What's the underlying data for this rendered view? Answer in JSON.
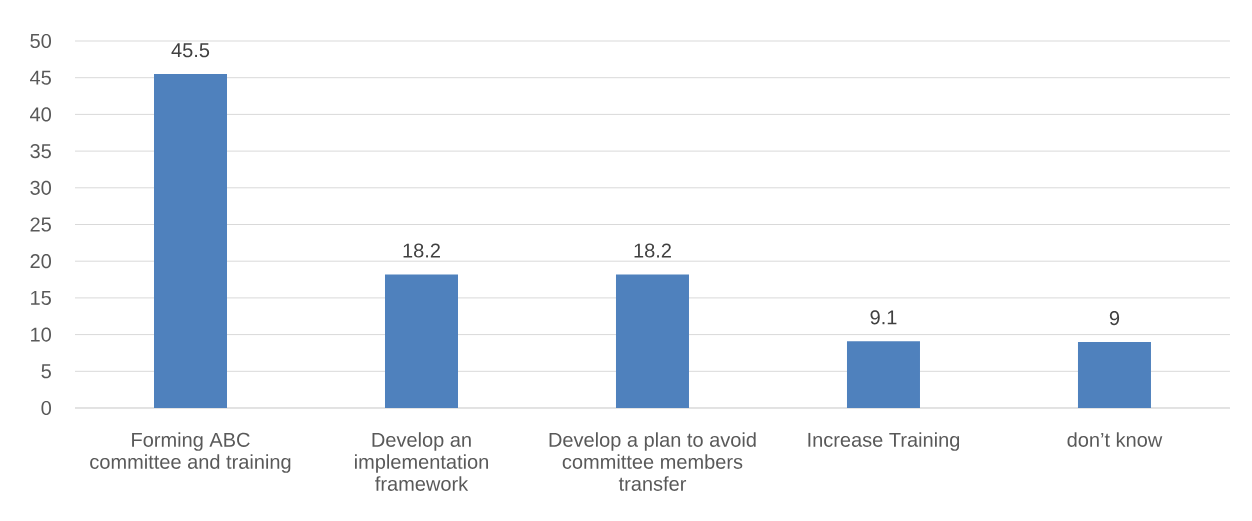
{
  "chart_data": {
    "type": "bar",
    "categories": [
      "Forming ABC committee and training",
      "Develop an implementation framework",
      "Develop a plan to avoid committee members transfer",
      "Increase Training",
      "don’t know"
    ],
    "values": [
      45.5,
      18.2,
      18.2,
      9.1,
      9
    ],
    "color": "#4f81bd",
    "ylim": [
      0,
      50
    ],
    "yticks": [
      0,
      5,
      10,
      15,
      20,
      25,
      30,
      35,
      40,
      45,
      50
    ],
    "grid": "y",
    "data_labels": true
  }
}
